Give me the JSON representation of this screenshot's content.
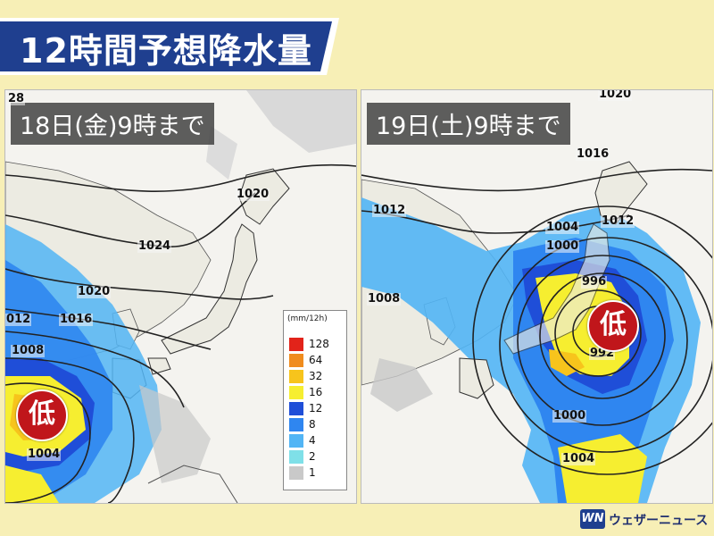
{
  "title": "12時間予想降水量",
  "panels": [
    {
      "label": "18日(金)9時まで",
      "low_label": "低",
      "isobars": [
        "28",
        "1020",
        "1024",
        "1020",
        "1016",
        "012",
        "1008",
        "1004"
      ]
    },
    {
      "label": "19日(土)9時まで",
      "low_label": "低",
      "isobars": [
        "1020",
        "1016",
        "1012",
        "1004",
        "1012",
        "1000",
        "1008",
        "996",
        "992",
        "1000",
        "1004"
      ]
    }
  ],
  "legend": {
    "unit": "(mm/12h)",
    "items": [
      {
        "label": "128",
        "color": "#e2231a"
      },
      {
        "label": "64",
        "color": "#f08c1e"
      },
      {
        "label": "32",
        "color": "#f7c41c"
      },
      {
        "label": "16",
        "color": "#f6ee30"
      },
      {
        "label": "12",
        "color": "#1f4ed8"
      },
      {
        "label": "8",
        "color": "#2f86f0"
      },
      {
        "label": "4",
        "color": "#52b5f5"
      },
      {
        "label": "2",
        "color": "#7fe0e8"
      },
      {
        "label": "1",
        "color": "#c9c9c9"
      }
    ]
  },
  "logo": {
    "badge": "WN",
    "text": "ウェザーニュース"
  },
  "colors": {
    "background": "#f7efb6",
    "banner": "#1f3f8f",
    "low": "#c0161b"
  }
}
